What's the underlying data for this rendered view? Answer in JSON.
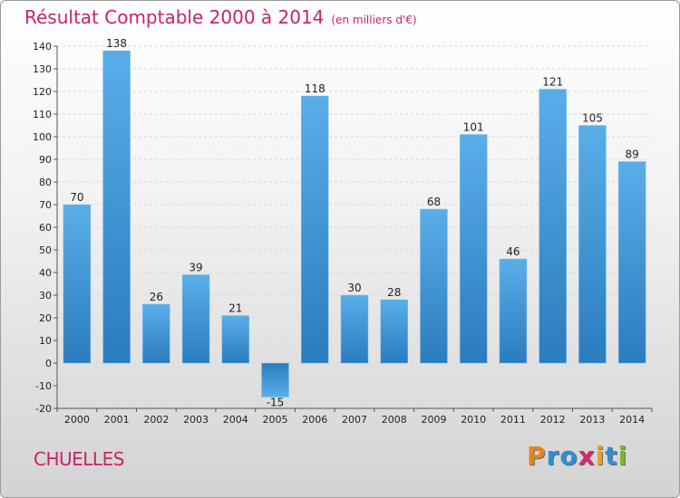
{
  "chart_data": {
    "type": "bar",
    "title": "Résultat Comptable 2000 à 2014",
    "unit": "(en milliers d'€)",
    "categories": [
      "2000",
      "2001",
      "2002",
      "2003",
      "2004",
      "2005",
      "2006",
      "2007",
      "2008",
      "2009",
      "2010",
      "2011",
      "2012",
      "2013",
      "2014"
    ],
    "values": [
      70,
      138,
      26,
      39,
      21,
      -15,
      118,
      30,
      28,
      68,
      101,
      46,
      121,
      105,
      89
    ],
    "value_labels": [
      "70",
      "138",
      "26",
      "39",
      "21",
      "-15",
      "118",
      "30",
      "28",
      "68",
      "101",
      "46",
      "121",
      "105",
      "89"
    ],
    "ylim": [
      -20,
      140
    ],
    "yticks": [
      -20,
      -10,
      0,
      10,
      20,
      30,
      40,
      50,
      60,
      70,
      80,
      90,
      100,
      110,
      120,
      130,
      140
    ],
    "grid": true,
    "colors": {
      "bar_top": "#5aaee8",
      "bar_bottom": "#2a7cbf",
      "bar_neg_top": "#2a7cbf",
      "bar_neg_bottom": "#5aaee8",
      "grid": "#d7d7d7",
      "axis": "#555555",
      "label": "#222222"
    }
  },
  "commune": "CHUELLES",
  "logo": {
    "letters": [
      "P",
      "r",
      "o",
      "x",
      "i",
      "t",
      "i"
    ],
    "colors": [
      "#e8841c",
      "#2c8fd6",
      "#2c8fd6",
      "#d22b6e",
      "#f0a020",
      "#2c8fd6",
      "#7ab829"
    ]
  },
  "accent_color": "#c8236b"
}
